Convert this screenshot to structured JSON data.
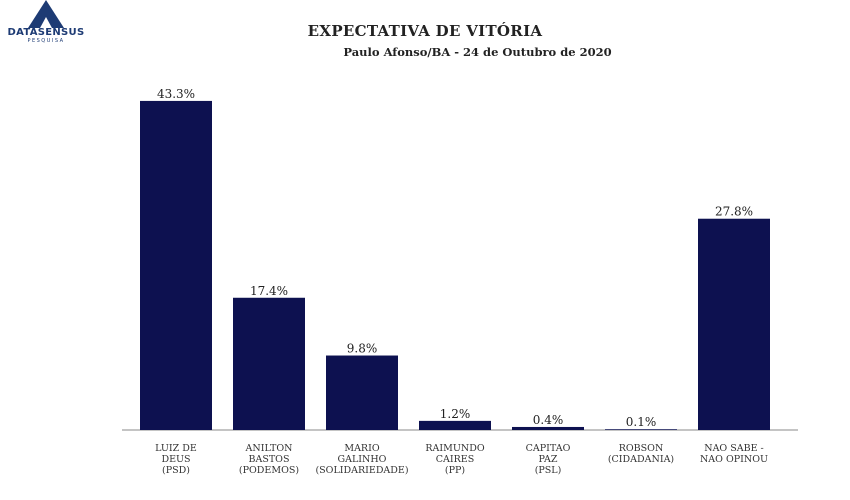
{
  "brand": {
    "name": "DATASENSUS",
    "sub": "PESQUISA"
  },
  "colors": {
    "bar": "#0d1150",
    "axis": "#888888",
    "brand": "#1d3b74"
  },
  "chart_data": {
    "type": "bar",
    "title": "EXPECTATIVA DE VITÓRIA",
    "subtitle": "Paulo Afonso/BA - 24 de Outubro de 2020",
    "categories": [
      [
        "LUIZ DE",
        "DEUS",
        "(PSD)"
      ],
      [
        "ANILTON",
        "BASTOS",
        "(PODEMOS)"
      ],
      [
        "MARIO",
        "GALINHO",
        "(SOLIDARIEDADE)"
      ],
      [
        "RAIMUNDO",
        "CAIRES",
        "(PP)"
      ],
      [
        "CAPITAO",
        "PAZ",
        "(PSL)"
      ],
      [
        "ROBSON",
        "(CIDADANIA)"
      ],
      [
        "NAO SABE -",
        "NAO OPINOU"
      ]
    ],
    "values": [
      43.3,
      17.4,
      9.8,
      1.2,
      0.4,
      0.1,
      27.8
    ],
    "data_labels": [
      "43.3%",
      "17.4%",
      "9.8%",
      "1.2%",
      "0.4%",
      "0.1%",
      "27.8%"
    ],
    "unit": "%",
    "grid": false,
    "legend": "none"
  }
}
